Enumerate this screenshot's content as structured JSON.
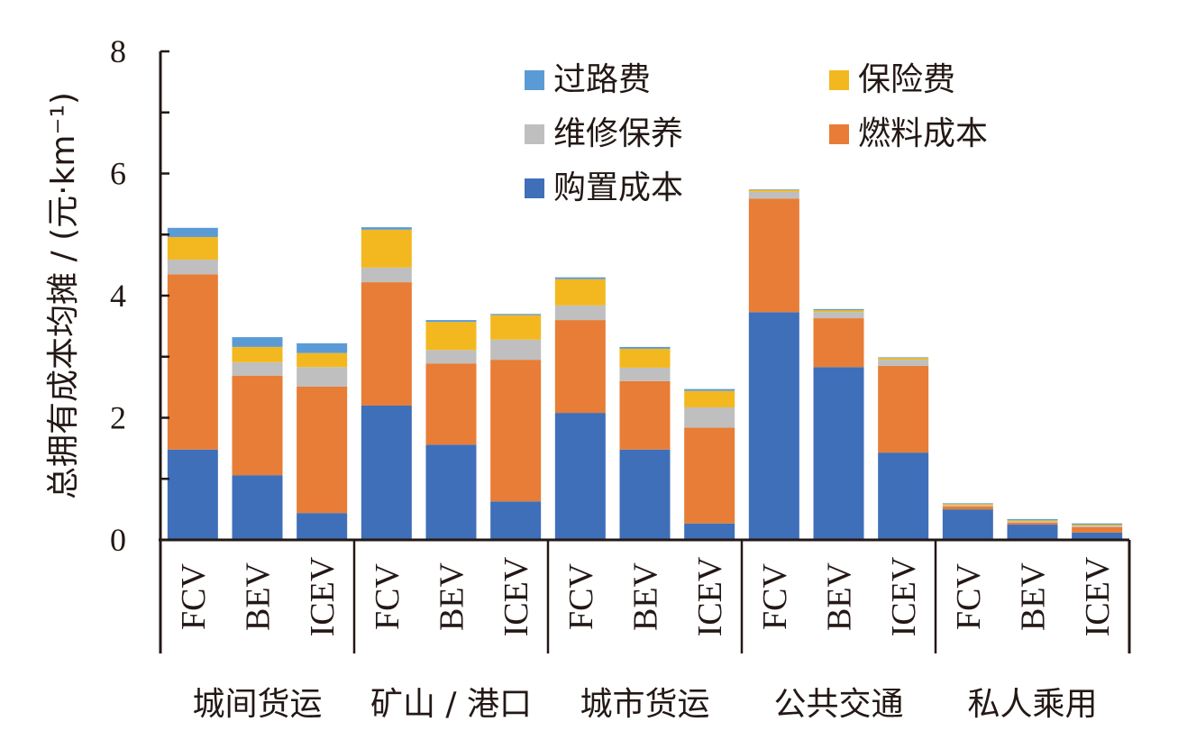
{
  "chart_data": {
    "type": "bar",
    "stacked": true,
    "title": "",
    "xlabel": "",
    "ylabel": "总拥有成本均摊 / (元·km⁻¹)",
    "ylim": [
      0,
      8
    ],
    "yticks": [
      "0",
      "2",
      "4",
      "6",
      "8"
    ],
    "legend_placement": "top-center",
    "groups": [
      "城间货运",
      "矿山 / 港口",
      "城市货运",
      "公共交通",
      "私人乘用"
    ],
    "categories": [
      "FCV",
      "BEV",
      "ICEV",
      "FCV",
      "BEV",
      "ICEV",
      "FCV",
      "BEV",
      "ICEV",
      "FCV",
      "BEV",
      "ICEV",
      "FCV",
      "BEV",
      "ICEV"
    ],
    "series": [
      {
        "name": "购置成本",
        "color": "#3f6fb8",
        "values": [
          1.48,
          1.06,
          0.44,
          2.2,
          1.56,
          0.63,
          2.08,
          1.48,
          0.27,
          3.73,
          2.83,
          1.43,
          0.5,
          0.25,
          0.12
        ]
      },
      {
        "name": "燃料成本",
        "color": "#e77d36",
        "values": [
          2.87,
          1.63,
          2.07,
          2.02,
          1.33,
          2.32,
          1.52,
          1.12,
          1.57,
          1.86,
          0.8,
          1.42,
          0.05,
          0.03,
          0.09
        ]
      },
      {
        "name": "维修保养",
        "color": "#bfbfbf",
        "values": [
          0.24,
          0.22,
          0.32,
          0.24,
          0.22,
          0.33,
          0.24,
          0.22,
          0.33,
          0.11,
          0.1,
          0.1,
          0.02,
          0.02,
          0.02
        ]
      },
      {
        "name": "保险费",
        "color": "#f3b81f",
        "values": [
          0.37,
          0.25,
          0.23,
          0.62,
          0.46,
          0.4,
          0.43,
          0.31,
          0.27,
          0.03,
          0.03,
          0.03,
          0.02,
          0.02,
          0.02
        ]
      },
      {
        "name": "过路费",
        "color": "#5b9bd5",
        "values": [
          0.15,
          0.16,
          0.16,
          0.04,
          0.03,
          0.02,
          0.03,
          0.03,
          0.03,
          0.01,
          0.02,
          0.01,
          0.01,
          0.02,
          0.02
        ]
      }
    ],
    "legend_order": [
      "过路费",
      "保险费",
      "维修保养",
      "燃料成本",
      "购置成本"
    ],
    "grid": false
  }
}
